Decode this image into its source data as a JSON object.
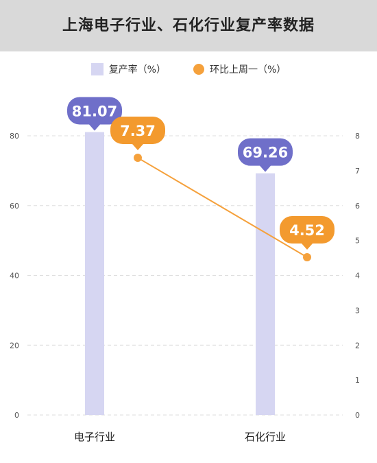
{
  "header": {
    "title": "上海电子行业、石化行业复产率数据"
  },
  "legend": {
    "bar_label": "复产率（%）",
    "line_label": "环比上周一（%）"
  },
  "colors": {
    "bar": "#d6d6f2",
    "line": "#f5a13c",
    "bar_bubble": "#6f6fc9",
    "line_bubble": "#f39a2e",
    "grid": "#dddddd",
    "header_bg": "#d9d9d9"
  },
  "chart_data": {
    "type": "bar",
    "title": "上海电子行业、石化行业复产率数据",
    "categories": [
      "电子行业",
      "石化行业"
    ],
    "series": [
      {
        "name": "复产率（%）",
        "type": "bar",
        "axis": "left",
        "values": [
          81.07,
          69.26
        ],
        "labels": [
          "81.07",
          "69.26"
        ]
      },
      {
        "name": "环比上周一（%）",
        "type": "line",
        "axis": "right",
        "values": [
          7.37,
          4.52
        ],
        "labels": [
          "7.37",
          "4.52"
        ]
      }
    ],
    "y_left": {
      "ticks": [
        0,
        20,
        40,
        60,
        80
      ],
      "tick_labels": [
        "0",
        "20",
        "40",
        "60",
        "80"
      ],
      "ylim": [
        0,
        80
      ]
    },
    "y_right": {
      "ticks": [
        0,
        1,
        2,
        3,
        4,
        5,
        6,
        7,
        8
      ],
      "tick_labels": [
        "0",
        "1",
        "2",
        "3",
        "4",
        "5",
        "6",
        "7",
        "8"
      ],
      "ylim": [
        0,
        8
      ]
    },
    "grid": true,
    "legend_position": "top-center"
  }
}
